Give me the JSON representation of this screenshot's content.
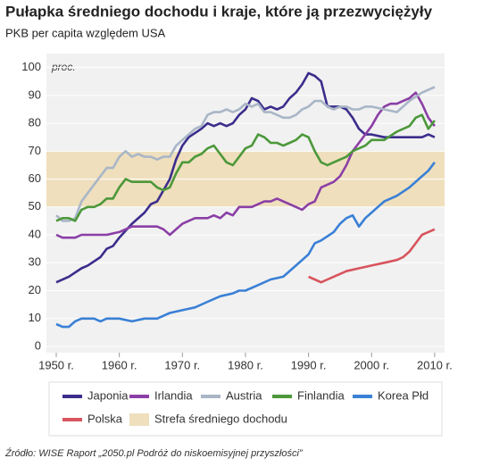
{
  "chart_data": {
    "type": "line",
    "title": "Pułapka średniego dochodu i kraje, które ją przezwyciężyły",
    "subtitle": "PKB per capita względem USA",
    "y_label": "proc.",
    "source": "Źródło: WISE Raport „2050.pl Podróż do niskoemisyjnej przyszłości”",
    "xlim": [
      1950,
      2012
    ],
    "ylim": [
      0,
      105
    ],
    "xticks": [
      {
        "value": 1950,
        "label": "1950 r."
      },
      {
        "value": 1960,
        "label": "1960 r."
      },
      {
        "value": 1970,
        "label": "1970 r."
      },
      {
        "value": 1980,
        "label": "1980 r."
      },
      {
        "value": 1990,
        "label": "1990 r."
      },
      {
        "value": 2000,
        "label": "2000 r."
      },
      {
        "value": 2010,
        "label": "2010 r."
      }
    ],
    "yticks": [
      0,
      10,
      20,
      30,
      40,
      50,
      60,
      70,
      80,
      90,
      100
    ],
    "grid": true,
    "band": {
      "name": "Strefa średniego dochodu",
      "range": [
        50,
        70
      ],
      "color": "#efdfbd"
    },
    "series": [
      {
        "name": "Japonia",
        "color": "#3b2d8c",
        "x": [
          1950,
          1952,
          1954,
          1955,
          1957,
          1958,
          1959,
          1960,
          1962,
          1964,
          1965,
          1966,
          1968,
          1969,
          1970,
          1971,
          1973,
          1974,
          1975,
          1976,
          1977,
          1978,
          1979,
          1980,
          1981,
          1982,
          1983,
          1984,
          1985,
          1986,
          1987,
          1988,
          1989,
          1990,
          1991,
          1992,
          1993,
          1994,
          1995,
          1996,
          1997,
          1998,
          1999,
          2000,
          2002,
          2004,
          2006,
          2008,
          2009,
          2010
        ],
        "values": [
          23,
          25,
          28,
          29,
          32,
          35,
          36,
          39,
          44,
          48,
          51,
          52,
          60,
          67,
          72,
          75,
          78,
          80,
          79,
          80,
          79,
          80,
          83,
          85,
          89,
          88,
          85,
          86,
          85,
          86,
          89,
          91,
          94,
          98,
          97,
          95,
          86,
          86,
          86,
          85,
          82,
          78,
          76,
          76,
          75,
          75,
          75,
          75,
          76,
          75
        ]
      },
      {
        "name": "Irlandia",
        "color": "#8b3fa6",
        "x": [
          1950,
          1951,
          1953,
          1954,
          1956,
          1958,
          1960,
          1962,
          1964,
          1966,
          1967,
          1968,
          1970,
          1972,
          1974,
          1975,
          1976,
          1977,
          1978,
          1979,
          1980,
          1981,
          1982,
          1983,
          1984,
          1985,
          1986,
          1988,
          1989,
          1990,
          1991,
          1992,
          1993,
          1994,
          1995,
          1996,
          1997,
          1998,
          1999,
          2000,
          2001,
          2002,
          2003,
          2004,
          2005,
          2006,
          2007,
          2008,
          2009,
          2010
        ],
        "values": [
          40,
          39,
          39,
          40,
          40,
          40,
          41,
          43,
          43,
          43,
          42,
          40,
          44,
          46,
          46,
          47,
          46,
          48,
          47,
          50,
          50,
          50,
          51,
          52,
          52,
          53,
          52,
          50,
          49,
          51,
          52,
          57,
          58,
          59,
          61,
          65,
          70,
          73,
          76,
          79,
          83,
          86,
          87,
          87,
          88,
          89,
          91,
          87,
          82,
          79
        ]
      },
      {
        "name": "Austria",
        "color": "#a9b6c7",
        "x": [
          1950,
          1951,
          1952,
          1953,
          1954,
          1955,
          1956,
          1957,
          1958,
          1959,
          1960,
          1961,
          1962,
          1963,
          1964,
          1965,
          1966,
          1967,
          1968,
          1969,
          1970,
          1971,
          1972,
          1973,
          1974,
          1975,
          1976,
          1977,
          1978,
          1979,
          1980,
          1981,
          1982,
          1983,
          1984,
          1985,
          1986,
          1987,
          1988,
          1989,
          1990,
          1991,
          1992,
          1993,
          1994,
          1995,
          1996,
          1997,
          1998,
          1999,
          2000,
          2002,
          2004,
          2006,
          2008,
          2010
        ],
        "values": [
          47,
          45,
          45,
          46,
          52,
          55,
          58,
          61,
          64,
          64,
          68,
          70,
          68,
          69,
          68,
          68,
          67,
          68,
          68,
          72,
          74,
          76,
          78,
          79,
          83,
          84,
          84,
          85,
          84,
          85,
          87,
          86,
          87,
          84,
          84,
          83,
          82,
          82,
          83,
          85,
          86,
          88,
          88,
          86,
          85,
          86,
          86,
          85,
          85,
          86,
          86,
          85,
          84,
          88,
          91,
          93
        ]
      },
      {
        "name": "Finlandia",
        "color": "#4c983a",
        "x": [
          1950,
          1951,
          1952,
          1953,
          1954,
          1955,
          1956,
          1957,
          1958,
          1959,
          1960,
          1961,
          1962,
          1964,
          1965,
          1966,
          1967,
          1968,
          1969,
          1970,
          1971,
          1972,
          1973,
          1974,
          1975,
          1976,
          1977,
          1978,
          1979,
          1980,
          1981,
          1982,
          1983,
          1984,
          1985,
          1986,
          1987,
          1988,
          1989,
          1990,
          1991,
          1992,
          1993,
          1994,
          1995,
          1996,
          1997,
          1998,
          1999,
          2000,
          2002,
          2004,
          2006,
          2007,
          2008,
          2009,
          2010
        ],
        "values": [
          45,
          46,
          46,
          45,
          49,
          50,
          50,
          51,
          53,
          53,
          57,
          60,
          59,
          59,
          59,
          57,
          56,
          57,
          62,
          66,
          66,
          68,
          69,
          71,
          72,
          69,
          66,
          65,
          68,
          71,
          72,
          76,
          75,
          73,
          73,
          72,
          73,
          74,
          76,
          75,
          70,
          66,
          65,
          66,
          67,
          68,
          70,
          71,
          72,
          74,
          74,
          77,
          79,
          82,
          83,
          78,
          81
        ]
      },
      {
        "name": "Korea Płd",
        "color": "#3a80d6",
        "x": [
          1950,
          1951,
          1952,
          1953,
          1954,
          1956,
          1957,
          1958,
          1960,
          1962,
          1964,
          1966,
          1968,
          1970,
          1972,
          1974,
          1976,
          1978,
          1979,
          1980,
          1982,
          1984,
          1986,
          1988,
          1989,
          1990,
          1991,
          1992,
          1994,
          1995,
          1996,
          1997,
          1998,
          1999,
          2000,
          2001,
          2002,
          2004,
          2006,
          2008,
          2009,
          2010
        ],
        "values": [
          8,
          7,
          7,
          9,
          10,
          10,
          9,
          10,
          10,
          9,
          10,
          10,
          12,
          13,
          14,
          16,
          18,
          19,
          20,
          20,
          22,
          24,
          25,
          29,
          31,
          33,
          37,
          38,
          41,
          44,
          46,
          47,
          43,
          46,
          48,
          50,
          52,
          54,
          57,
          61,
          63,
          66
        ]
      },
      {
        "name": "Polska",
        "color": "#d8545e",
        "x": [
          1990,
          1991,
          1992,
          1993,
          1994,
          1995,
          1996,
          1998,
          2000,
          2002,
          2004,
          2005,
          2006,
          2007,
          2008,
          2009,
          2010
        ],
        "values": [
          25,
          24,
          23,
          24,
          25,
          26,
          27,
          28,
          29,
          30,
          31,
          32,
          34,
          37,
          40,
          41,
          42
        ]
      }
    ]
  }
}
